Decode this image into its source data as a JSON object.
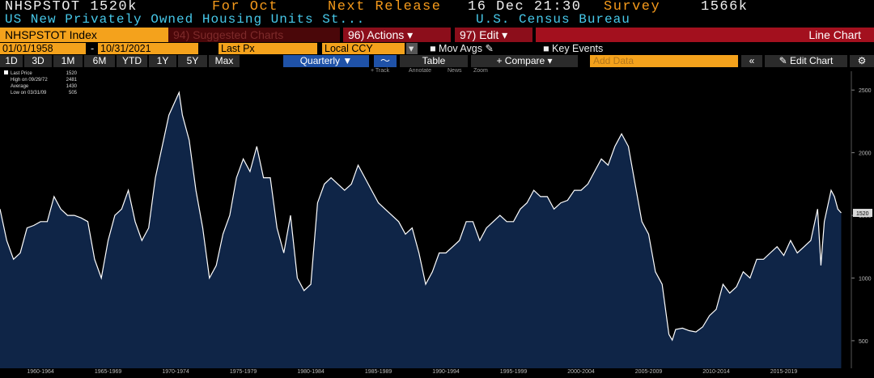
{
  "header": {
    "ticker": "NHSPSTOT 1520k",
    "for_label": "For Oct",
    "release_label": "Next Release",
    "release_date": "16 Dec 21:30",
    "survey_label": "Survey",
    "survey_value": "1566k",
    "description": "US New Privately Owned Housing Units St...",
    "source": "U.S. Census Bureau"
  },
  "toolbar": {
    "security": "NHSPSTOT Index",
    "suggested": "94) Suggested Charts",
    "actions": "96) Actions",
    "edit": "97) Edit",
    "chart_kind": "Line Chart",
    "start_date": "01/01/1958",
    "end_date": "10/31/2021",
    "field": "Last Px",
    "currency": "Local CCY",
    "mov_avgs": "Mov Avgs",
    "key_events": "Key Events",
    "ranges": [
      "1D",
      "3D",
      "1M",
      "6M",
      "YTD",
      "1Y",
      "5Y",
      "Max"
    ],
    "frequency": "Quarterly",
    "table": "Table",
    "compare": "+ Compare",
    "add_data": "Add Data",
    "edit_chart": "Edit Chart",
    "tools": [
      "+ Track",
      "Annotate",
      "News",
      "Zoom"
    ]
  },
  "chart_data": {
    "type": "area",
    "color": "#ffffff",
    "fill": "#0f2547",
    "stats": [
      {
        "label": "Last Price",
        "value": 1520
      },
      {
        "label": "High on 09/29/72",
        "value": 2481
      },
      {
        "label": "Average",
        "value": 1430
      },
      {
        "label": "Low on 03/31/09",
        "value": 505
      }
    ],
    "x": [
      1959.5,
      1960.0,
      1960.5,
      1961.0,
      1961.5,
      1962.0,
      1962.5,
      1963.0,
      1963.5,
      1964.0,
      1964.5,
      1965.0,
      1965.5,
      1966.0,
      1966.5,
      1967.0,
      1967.5,
      1968.0,
      1968.5,
      1969.0,
      1969.5,
      1970.0,
      1970.5,
      1971.0,
      1971.5,
      1972.0,
      1972.75,
      1973.0,
      1973.5,
      1974.0,
      1974.5,
      1975.0,
      1975.5,
      1976.0,
      1976.5,
      1977.0,
      1977.5,
      1978.0,
      1978.5,
      1979.0,
      1979.5,
      1980.0,
      1980.5,
      1981.0,
      1981.5,
      1982.0,
      1982.5,
      1983.0,
      1983.5,
      1984.0,
      1984.5,
      1985.0,
      1985.5,
      1986.0,
      1986.5,
      1987.0,
      1987.5,
      1988.0,
      1988.5,
      1989.0,
      1989.5,
      1990.0,
      1990.5,
      1991.0,
      1991.5,
      1992.0,
      1992.5,
      1993.0,
      1993.5,
      1994.0,
      1994.5,
      1995.0,
      1995.5,
      1996.0,
      1996.5,
      1997.0,
      1997.5,
      1998.0,
      1998.5,
      1999.0,
      1999.5,
      2000.0,
      2000.5,
      2001.0,
      2001.5,
      2002.0,
      2002.5,
      2003.0,
      2003.5,
      2004.0,
      2004.5,
      2005.0,
      2005.5,
      2006.0,
      2006.5,
      2007.0,
      2007.5,
      2008.0,
      2008.5,
      2009.0,
      2009.25,
      2009.5,
      2010.0,
      2010.5,
      2011.0,
      2011.5,
      2012.0,
      2012.5,
      2013.0,
      2013.5,
      2014.0,
      2014.5,
      2015.0,
      2015.5,
      2016.0,
      2016.5,
      2017.0,
      2017.5,
      2018.0,
      2018.5,
      2019.0,
      2019.5,
      2020.0,
      2020.25,
      2020.5,
      2021.0,
      2021.25,
      2021.5,
      2021.75
    ],
    "values": [
      1550,
      1300,
      1150,
      1200,
      1400,
      1420,
      1450,
      1450,
      1650,
      1550,
      1500,
      1500,
      1480,
      1450,
      1150,
      1000,
      1300,
      1500,
      1550,
      1700,
      1450,
      1300,
      1400,
      1800,
      2050,
      2300,
      2481,
      2300,
      2100,
      1700,
      1400,
      1000,
      1100,
      1350,
      1500,
      1800,
      1950,
      1850,
      2050,
      1800,
      1800,
      1400,
      1200,
      1500,
      1000,
      900,
      950,
      1600,
      1750,
      1800,
      1750,
      1700,
      1750,
      1900,
      1800,
      1700,
      1600,
      1550,
      1500,
      1450,
      1350,
      1400,
      1200,
      950,
      1050,
      1200,
      1200,
      1250,
      1300,
      1450,
      1450,
      1300,
      1400,
      1450,
      1500,
      1450,
      1450,
      1550,
      1600,
      1700,
      1650,
      1650,
      1550,
      1600,
      1620,
      1700,
      1700,
      1750,
      1850,
      1950,
      1900,
      2050,
      2150,
      2050,
      1750,
      1450,
      1350,
      1050,
      950,
      550,
      505,
      590,
      600,
      580,
      570,
      610,
      700,
      750,
      950,
      880,
      930,
      1050,
      1000,
      1150,
      1150,
      1200,
      1250,
      1180,
      1300,
      1200,
      1250,
      1300,
      1550,
      1100,
      1450,
      1700,
      1650,
      1550,
      1520
    ],
    "xlim": [
      1959.5,
      2022.5
    ],
    "ylim": [
      280,
      2650
    ],
    "xticks": [
      {
        "value": 1962.5,
        "label": "1960-1964"
      },
      {
        "value": 1967.5,
        "label": "1965-1969"
      },
      {
        "value": 1972.5,
        "label": "1970-1974"
      },
      {
        "value": 1977.5,
        "label": "1975-1979"
      },
      {
        "value": 1982.5,
        "label": "1980-1984"
      },
      {
        "value": 1987.5,
        "label": "1985-1989"
      },
      {
        "value": 1992.5,
        "label": "1990-1994"
      },
      {
        "value": 1997.5,
        "label": "1995-1999"
      },
      {
        "value": 2002.5,
        "label": "2000-2004"
      },
      {
        "value": 2007.5,
        "label": "2005-2009"
      },
      {
        "value": 2012.5,
        "label": "2010-2014"
      },
      {
        "value": 2017.5,
        "label": "2015-2019"
      }
    ],
    "yticks": [
      500,
      1000,
      1500,
      2000,
      2500
    ]
  }
}
